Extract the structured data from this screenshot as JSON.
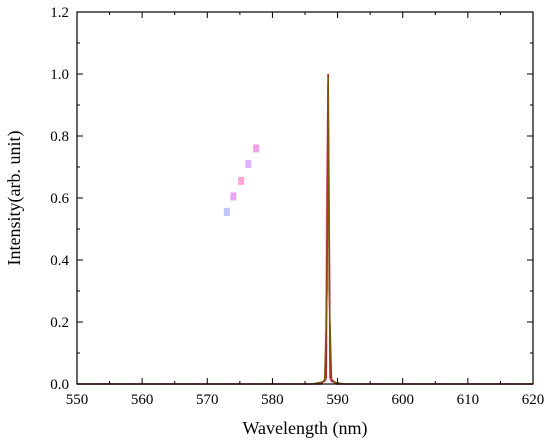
{
  "chart_data": {
    "type": "line",
    "title": "",
    "xlabel": "Wavelength (nm)",
    "ylabel": "Intensity(arb. unit)",
    "xlim": [
      550,
      620
    ],
    "ylim": [
      0,
      1.2
    ],
    "x_ticks": [
      550,
      560,
      570,
      580,
      590,
      600,
      610,
      620
    ],
    "y_ticks": [
      0.0,
      0.2,
      0.4,
      0.6,
      0.8,
      1.0,
      1.2
    ],
    "x_tick_labels": [
      "550",
      "560",
      "570",
      "580",
      "590",
      "600",
      "610",
      "620"
    ],
    "y_tick_labels": [
      "0.0",
      "0.2",
      "0.4",
      "0.6",
      "0.8",
      "1.0",
      "1.2"
    ],
    "grid": false,
    "legend": "none (faint marker swatches near top-left of plot)",
    "series": [
      {
        "color": "#ff99cc",
        "x": [
          550,
          586.5,
          588.1,
          588.3,
          588.5,
          588.7,
          588.9,
          590.5,
          620
        ],
        "y": [
          0,
          0,
          0.01,
          0.6,
          0.97,
          0.6,
          0.01,
          0,
          0
        ]
      },
      {
        "color": "#c87dd8",
        "x": [
          550,
          587.0,
          588.2,
          588.4,
          588.55,
          588.7,
          588.9,
          590.0,
          620
        ],
        "y": [
          0,
          0,
          0.01,
          0.5,
          0.95,
          0.5,
          0.01,
          0,
          0
        ]
      },
      {
        "color": "#b22222",
        "x": [
          550,
          587.5,
          588.25,
          588.45,
          588.55,
          588.65,
          588.85,
          589.8,
          620
        ],
        "y": [
          0,
          0,
          0.02,
          0.7,
          1.0,
          0.7,
          0.02,
          0,
          0
        ]
      },
      {
        "color": "#7a5a00",
        "x": [
          550,
          586.0,
          588.0,
          588.4,
          588.55,
          588.7,
          589.1,
          591.0,
          620
        ],
        "y": [
          0,
          0,
          0.008,
          0.3,
          0.99,
          0.3,
          0.008,
          0,
          0
        ]
      }
    ],
    "legend_markers": [
      {
        "color": "#bfc7ff",
        "x": 573.0,
        "y": 0.555
      },
      {
        "color": "#e8a6ff",
        "x": 574.0,
        "y": 0.605
      },
      {
        "color": "#ffa6d9",
        "x": 575.2,
        "y": 0.655
      },
      {
        "color": "#ddb3ff",
        "x": 576.3,
        "y": 0.71
      },
      {
        "color": "#f0a0e6",
        "x": 577.5,
        "y": 0.76
      }
    ]
  }
}
